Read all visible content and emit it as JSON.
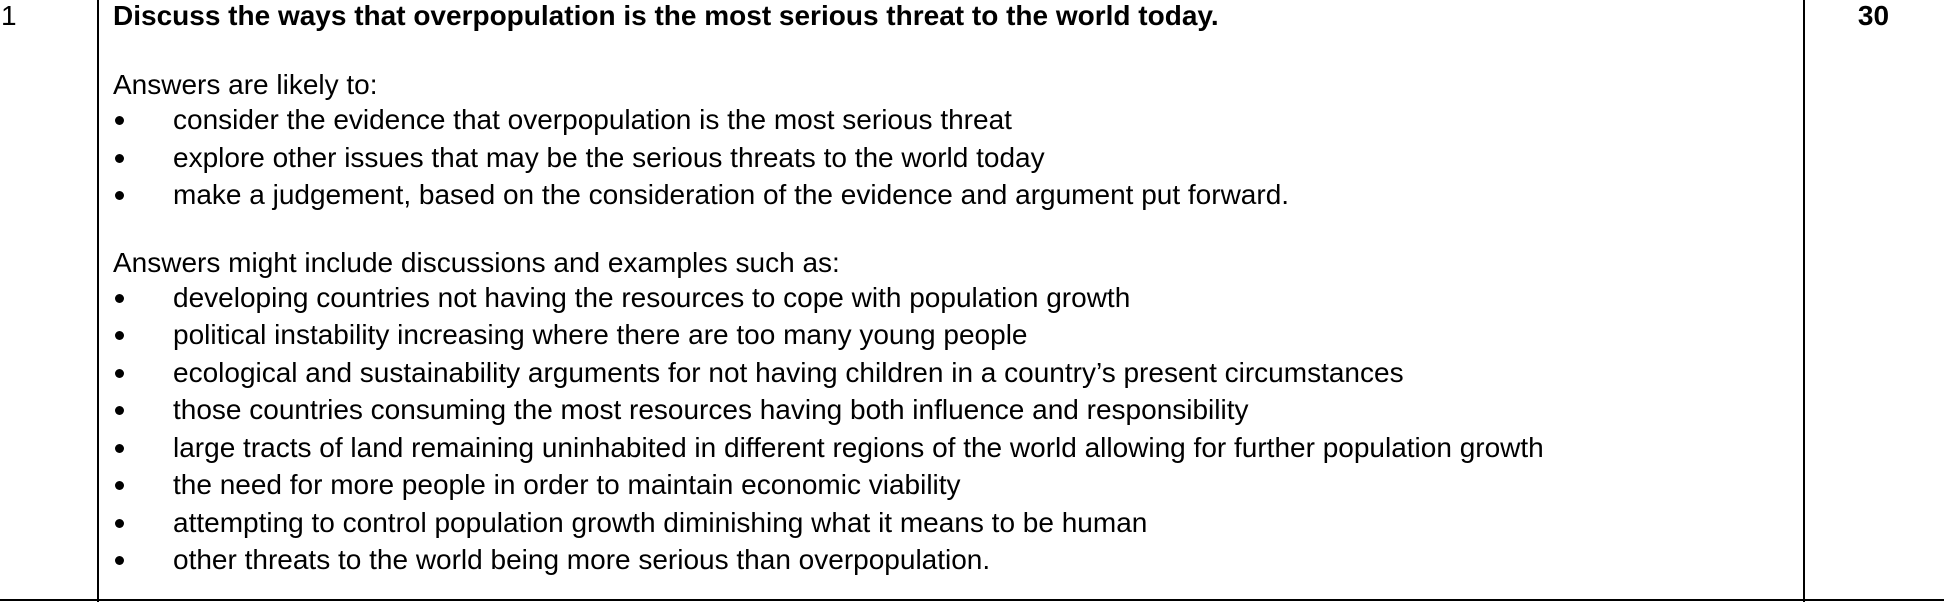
{
  "question": {
    "number": "1",
    "text": "Discuss the ways that overpopulation is the most serious threat to the world today.",
    "marks": "30"
  },
  "likely": {
    "lead": "Answers are likely to:",
    "items": [
      "consider the evidence that overpopulation is the most serious threat",
      "explore other issues that may be the serious threats to the world today",
      "make a judgement, based on the consideration of the evidence and argument put forward."
    ]
  },
  "include": {
    "lead": "Answers might include discussions and examples such as:",
    "items": [
      "developing countries not having the resources to cope with population growth",
      "political instability increasing where there are too many young people",
      "ecological and sustainability arguments for not having children in a country’s present circumstances",
      "those countries consuming the most resources having both influence and responsibility",
      "large tracts of land remaining uninhabited in different regions of the world allowing for further population growth",
      "the need for more people in order to maintain economic viability",
      "attempting to control population growth diminishing what it means to be human",
      "other threats to the world being more serious than overpopulation."
    ]
  }
}
